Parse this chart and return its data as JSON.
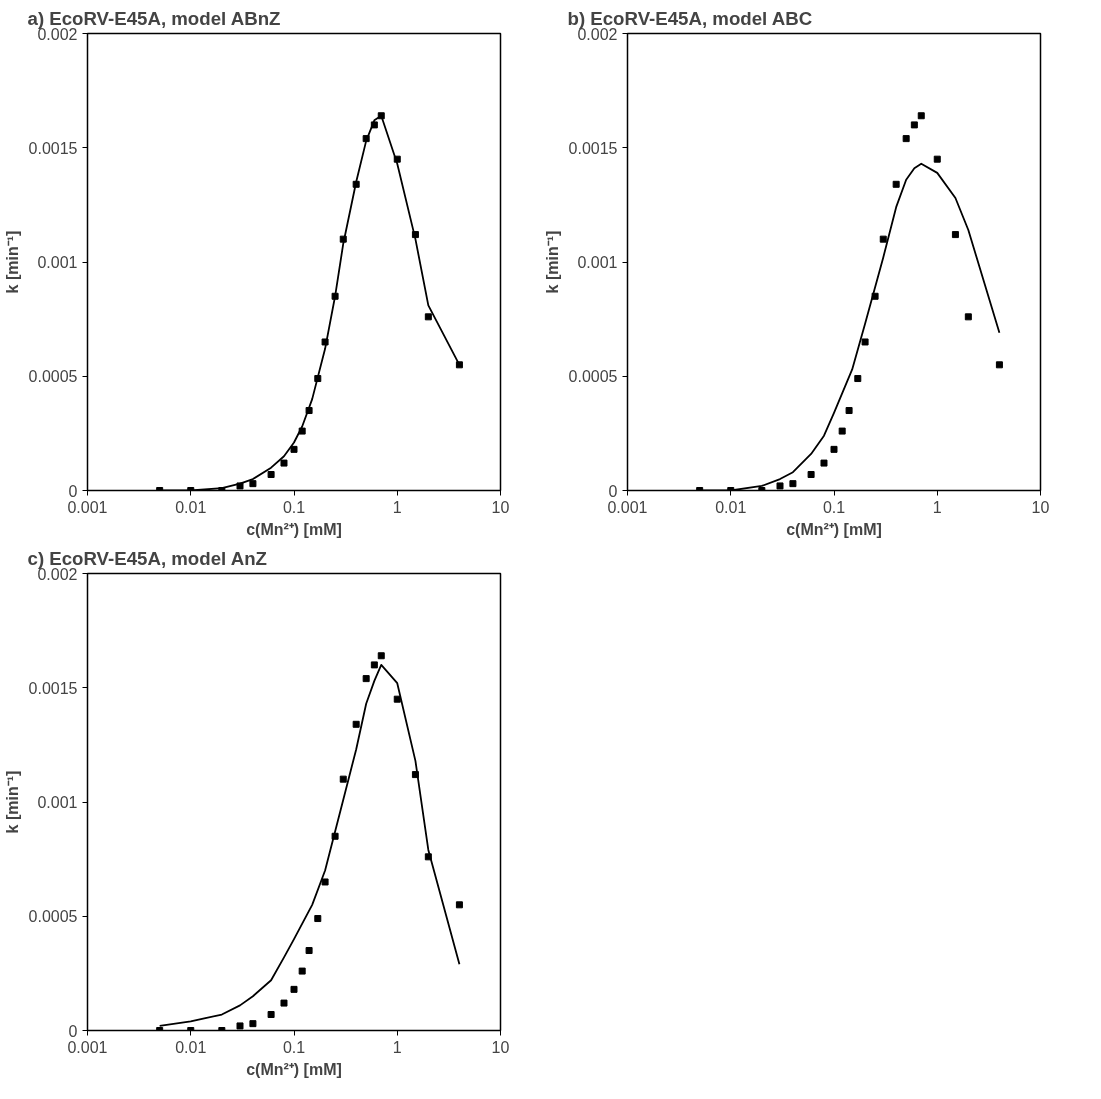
{
  "chart_data": [
    {
      "type": "scatter",
      "title": "a) EcoRV-E45A, model ABnZ",
      "xlabel": "c(Mn²⁺) [mM]",
      "ylabel": "k [min⁻¹]",
      "log": "x",
      "xlim": [
        0.001,
        10
      ],
      "xticks": [
        0.001,
        0.01,
        0.1,
        1,
        10
      ],
      "ylim": [
        0,
        0.002
      ],
      "yticks": [
        0,
        0.0005,
        0.001,
        0.0015,
        0.002
      ],
      "grid": false,
      "x": [
        0.005,
        0.01,
        0.02,
        0.03,
        0.04,
        0.06,
        0.08,
        0.1,
        0.12,
        0.14,
        0.17,
        0.2,
        0.25,
        0.3,
        0.4,
        0.5,
        0.6,
        0.7,
        1,
        1.5,
        2,
        4
      ],
      "series": [
        {
          "color": "#000000",
          "marker": "square",
          "values": [
            0,
            0,
            0,
            2e-05,
            3e-05,
            7e-05,
            0.00012,
            0.00018,
            0.00026,
            0.00035,
            0.00049,
            0.00065,
            0.00085,
            0.0011,
            0.00134,
            0.00154,
            0.0016,
            0.00164,
            0.00145,
            0.00112,
            0.00076,
            0.00055
          ]
        },
        {
          "type": "line",
          "color": "#000000",
          "line_style": "solid",
          "x": [
            0.005,
            0.01,
            0.02,
            0.03,
            0.04,
            0.06,
            0.08,
            0.1,
            0.12,
            0.15,
            0.2,
            0.25,
            0.3,
            0.4,
            0.5,
            0.6,
            0.7,
            1,
            1.5,
            2,
            4
          ],
          "values": [
            0,
            0,
            1e-05,
            3e-05,
            5e-05,
            0.0001,
            0.00015,
            0.00021,
            0.00028,
            0.0004,
            0.00062,
            0.00085,
            0.00108,
            0.00135,
            0.00153,
            0.00162,
            0.00164,
            0.00143,
            0.0011,
            0.00081,
            0.00055
          ]
        }
      ]
    },
    {
      "type": "scatter",
      "title": "b) EcoRV-E45A, model ABC",
      "xlabel": "c(Mn²⁺) [mM]",
      "ylabel": "k [min⁻¹]",
      "log": "x",
      "xlim": [
        0.001,
        10
      ],
      "xticks": [
        0.001,
        0.01,
        0.1,
        1,
        10
      ],
      "ylim": [
        0,
        0.002
      ],
      "yticks": [
        0,
        0.0005,
        0.001,
        0.0015,
        0.002
      ],
      "grid": false,
      "x": [
        0.005,
        0.01,
        0.02,
        0.03,
        0.04,
        0.06,
        0.08,
        0.1,
        0.12,
        0.14,
        0.17,
        0.2,
        0.25,
        0.3,
        0.4,
        0.5,
        0.6,
        0.7,
        1,
        1.5,
        2,
        4
      ],
      "series": [
        {
          "color": "#000000",
          "marker": "square",
          "values": [
            0,
            0,
            0,
            2e-05,
            3e-05,
            7e-05,
            0.00012,
            0.00018,
            0.00026,
            0.00035,
            0.00049,
            0.00065,
            0.00085,
            0.0011,
            0.00134,
            0.00154,
            0.0016,
            0.00164,
            0.00145,
            0.00112,
            0.00076,
            0.00055
          ]
        },
        {
          "type": "line",
          "color": "#000000",
          "line_style": "solid",
          "x": [
            0.005,
            0.01,
            0.02,
            0.03,
            0.04,
            0.06,
            0.08,
            0.1,
            0.15,
            0.2,
            0.3,
            0.4,
            0.5,
            0.6,
            0.7,
            1,
            1.5,
            2,
            4
          ],
          "values": [
            0,
            0,
            2e-05,
            5e-05,
            8e-05,
            0.00016,
            0.00024,
            0.00034,
            0.00053,
            0.00073,
            0.00102,
            0.00124,
            0.00136,
            0.00141,
            0.00143,
            0.00139,
            0.00128,
            0.00114,
            0.00069
          ]
        }
      ]
    },
    {
      "type": "scatter",
      "title": "c) EcoRV-E45A, model AnZ",
      "xlabel": "c(Mn²⁺) [mM]",
      "ylabel": "k [min⁻¹]",
      "log": "x",
      "xlim": [
        0.001,
        10
      ],
      "xticks": [
        0.001,
        0.01,
        0.1,
        1,
        10
      ],
      "ylim": [
        0,
        0.002
      ],
      "yticks": [
        0,
        0.0005,
        0.001,
        0.0015,
        0.002
      ],
      "grid": false,
      "x": [
        0.005,
        0.01,
        0.02,
        0.03,
        0.04,
        0.06,
        0.08,
        0.1,
        0.12,
        0.14,
        0.17,
        0.2,
        0.25,
        0.3,
        0.4,
        0.5,
        0.6,
        0.7,
        1,
        1.5,
        2,
        4
      ],
      "series": [
        {
          "color": "#000000",
          "marker": "square",
          "values": [
            0,
            0,
            0,
            2e-05,
            3e-05,
            7e-05,
            0.00012,
            0.00018,
            0.00026,
            0.00035,
            0.00049,
            0.00065,
            0.00085,
            0.0011,
            0.00134,
            0.00154,
            0.0016,
            0.00164,
            0.00145,
            0.00112,
            0.00076,
            0.00055
          ]
        },
        {
          "type": "line",
          "color": "#000000",
          "line_style": "solid",
          "x": [
            0.005,
            0.01,
            0.02,
            0.03,
            0.04,
            0.06,
            0.08,
            0.1,
            0.15,
            0.2,
            0.3,
            0.4,
            0.5,
            0.6,
            0.7,
            1,
            1.5,
            2,
            4
          ],
          "values": [
            2e-05,
            4e-05,
            7e-05,
            0.00011,
            0.00015,
            0.00022,
            0.00032,
            0.0004,
            0.00055,
            0.0007,
            0.00101,
            0.00123,
            0.00143,
            0.00153,
            0.0016,
            0.00152,
            0.00118,
            0.00079,
            0.00029
          ]
        }
      ]
    }
  ]
}
